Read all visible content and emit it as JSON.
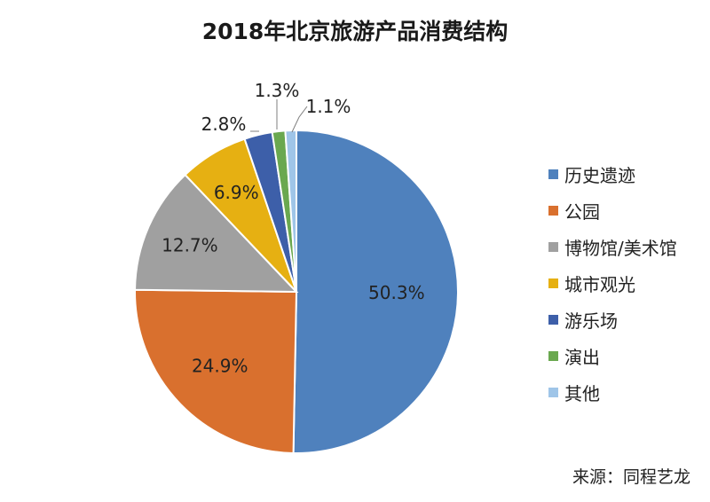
{
  "chart_data": {
    "type": "pie",
    "title": "2018年北京旅游产品消费结构",
    "slices": [
      {
        "label": "历史遗迹",
        "value": 50.3,
        "value_label": "50.3%",
        "color": "#4f81bd"
      },
      {
        "label": "公园",
        "value": 24.9,
        "value_label": "24.9%",
        "color": "#d9702e"
      },
      {
        "label": "博物馆/美术馆",
        "value": 12.7,
        "value_label": "12.7%",
        "color": "#a0a0a0"
      },
      {
        "label": "城市观光",
        "value": 6.9,
        "value_label": "6.9%",
        "color": "#e6b012"
      },
      {
        "label": "游乐场",
        "value": 2.8,
        "value_label": "2.8%",
        "color": "#3d5fa9"
      },
      {
        "label": "演出",
        "value": 1.3,
        "value_label": "1.3%",
        "color": "#6aa84f"
      },
      {
        "label": "其他",
        "value": 1.1,
        "value_label": "1.1%",
        "color": "#9fc5e8"
      }
    ],
    "legend_position": "right"
  },
  "source": "来源：同程艺龙"
}
